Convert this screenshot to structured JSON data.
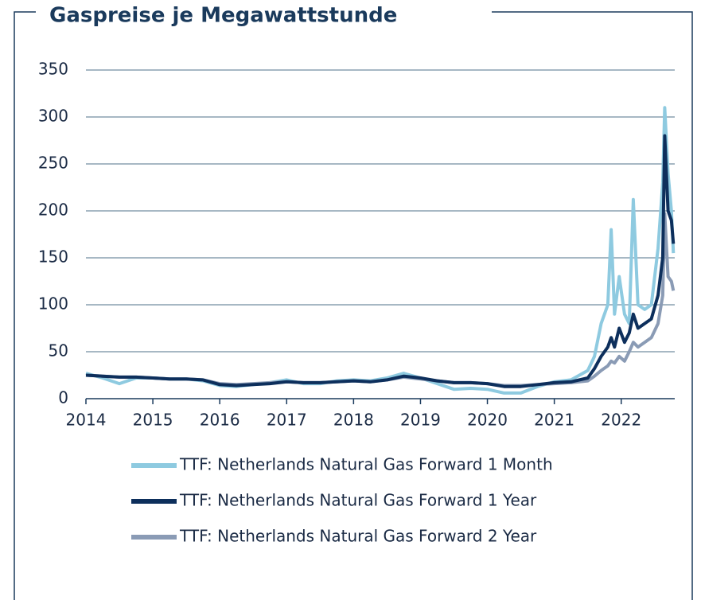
{
  "chart_data": {
    "type": "line",
    "title": "Gaspreise je Megawattstunde",
    "x": [
      2014,
      2014.25,
      2014.5,
      2014.75,
      2015,
      2015.25,
      2015.5,
      2015.75,
      2016,
      2016.25,
      2016.5,
      2016.75,
      2017,
      2017.25,
      2017.5,
      2017.75,
      2018,
      2018.25,
      2018.5,
      2018.75,
      2019,
      2019.25,
      2019.5,
      2019.75,
      2020,
      2020.25,
      2020.5,
      2020.75,
      2021,
      2021.25,
      2021.5,
      2021.6,
      2021.7,
      2021.8,
      2021.85,
      2021.9,
      2021.97,
      2022.05,
      2022.12,
      2022.18,
      2022.25,
      2022.35,
      2022.45,
      2022.55,
      2022.62,
      2022.65,
      2022.7,
      2022.75,
      2022.78
    ],
    "series": [
      {
        "name": "TTF: Netherlands Natural Gas Forward 1 Month",
        "color": "#8ecae0",
        "values": [
          27,
          22,
          16,
          22,
          22,
          21,
          21,
          19,
          14,
          13,
          15,
          17,
          20,
          16,
          16,
          19,
          20,
          19,
          22,
          27,
          22,
          16,
          10,
          11,
          10,
          6,
          6,
          13,
          18,
          20,
          30,
          45,
          80,
          100,
          180,
          90,
          130,
          90,
          80,
          212,
          100,
          95,
          100,
          160,
          230,
          310,
          240,
          200,
          155
        ]
      },
      {
        "name": "TTF: Netherlands Natural Gas Forward 2 Year",
        "color": "#8a9bb5",
        "values": [
          25,
          24,
          23,
          23,
          22,
          21,
          21,
          20,
          16,
          15,
          16,
          17,
          18,
          17,
          17,
          18,
          19,
          18,
          20,
          23,
          21,
          19,
          17,
          17,
          16,
          14,
          14,
          15,
          16,
          17,
          19,
          24,
          30,
          35,
          40,
          38,
          45,
          40,
          50,
          60,
          55,
          60,
          65,
          80,
          110,
          197,
          130,
          125,
          115
        ]
      },
      {
        "name": "TTF: Netherlands Natural Gas Forward 1 Year",
        "color": "#0d2f5c",
        "values": [
          25,
          24,
          23,
          23,
          22,
          21,
          21,
          20,
          15,
          14,
          15,
          16,
          18,
          17,
          17,
          18,
          19,
          18,
          20,
          24,
          22,
          19,
          17,
          17,
          16,
          13,
          13,
          15,
          17,
          18,
          22,
          32,
          45,
          55,
          65,
          55,
          75,
          60,
          70,
          90,
          75,
          80,
          85,
          110,
          150,
          280,
          200,
          190,
          165
        ]
      }
    ],
    "legend_order": [
      0,
      2,
      1
    ],
    "xlim": [
      2014,
      2022.8
    ],
    "xticks": [
      2014,
      2015,
      2016,
      2017,
      2018,
      2019,
      2020,
      2021,
      2022
    ],
    "ylim": [
      0,
      350
    ],
    "yticks": [
      0,
      50,
      100,
      150,
      200,
      250,
      300,
      350
    ],
    "grid": true
  }
}
